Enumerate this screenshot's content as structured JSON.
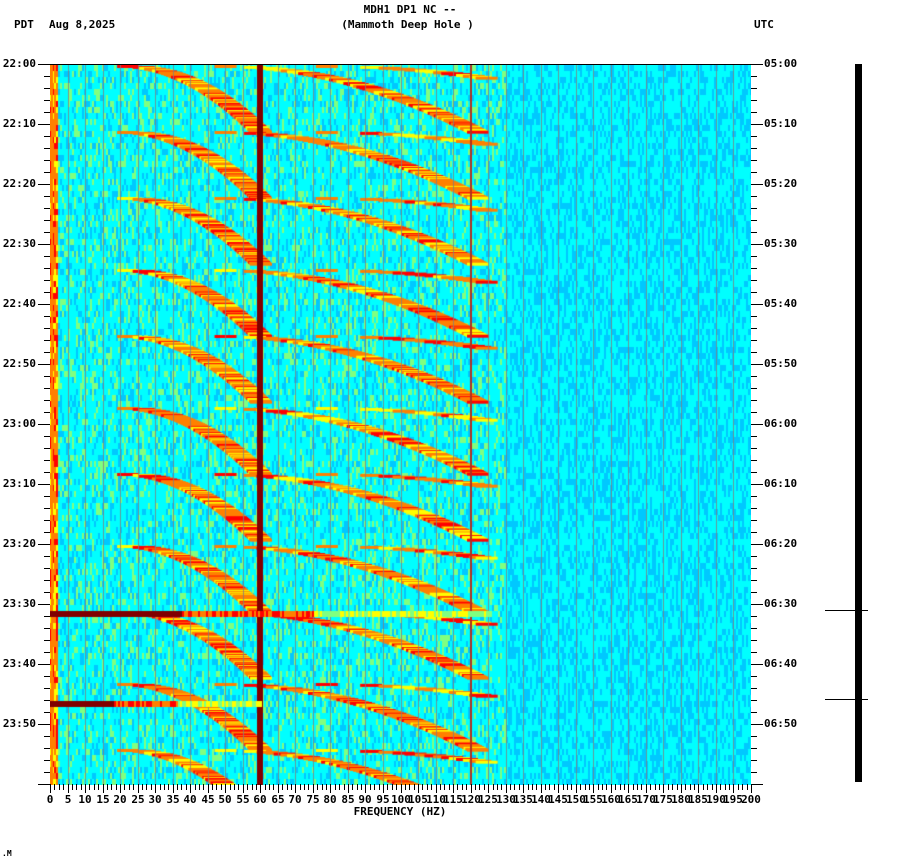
{
  "header": {
    "station": "MDH1 DP1 NC --",
    "location": "(Mammoth Deep Hole )",
    "left_timezone": "PDT",
    "date": "Aug 8,2025",
    "right_timezone": "UTC"
  },
  "footer": {
    "mark": ".M"
  },
  "chart_data": {
    "type": "heatmap",
    "title": "MDH1 DP1 NC -- (Mammoth Deep Hole )",
    "xlabel": "FREQUENCY (HZ)",
    "ylabel_left": "PDT",
    "ylabel_right": "UTC",
    "xlim": [
      0,
      200
    ],
    "x_ticks": [
      0,
      5,
      10,
      15,
      20,
      25,
      30,
      35,
      40,
      45,
      50,
      55,
      60,
      65,
      70,
      75,
      80,
      85,
      90,
      95,
      100,
      105,
      110,
      115,
      120,
      125,
      130,
      135,
      140,
      145,
      150,
      155,
      160,
      165,
      170,
      175,
      180,
      185,
      190,
      195,
      200
    ],
    "y_ticks_left": [
      "22:00",
      "22:10",
      "22:20",
      "22:30",
      "22:40",
      "22:50",
      "23:00",
      "23:10",
      "23:20",
      "23:30",
      "23:40",
      "23:50"
    ],
    "y_ticks_right": [
      "05:00",
      "05:10",
      "05:20",
      "05:30",
      "05:40",
      "05:50",
      "06:00",
      "06:10",
      "06:20",
      "06:30",
      "06:40",
      "06:50"
    ],
    "time_range_minutes": 120,
    "colormap": [
      "#0000ff",
      "#0080ff",
      "#00c8ff",
      "#00ffff",
      "#80ff80",
      "#ffff00",
      "#ff8000",
      "#ff0000",
      "#800000"
    ],
    "background_level": "cyan-blue",
    "persistent_lines_hz": [
      {
        "freq": 60,
        "strength": "max",
        "color": "#800000"
      },
      {
        "freq": 120,
        "strength": "moderate",
        "color": "#b03020"
      },
      {
        "freq": 0.5,
        "strength": "high",
        "color": "#ff8000"
      }
    ],
    "broadband_events": [
      {
        "time_pdt": "23:31",
        "freq_range": [
          0,
          125
        ],
        "color": "#800000"
      },
      {
        "time_pdt": "23:46",
        "freq_range": [
          0,
          60
        ],
        "color": "#800000"
      }
    ],
    "gliding_tones": {
      "description": "Repeating upward-curving harmonic glides (aircraft-like), period approx 11 min",
      "start_minutes": [
        0,
        11,
        22,
        34,
        45,
        57,
        68,
        80,
        91,
        103,
        114
      ],
      "fundamental_range_hz": [
        22,
        60
      ],
      "harmonic_count": 3
    },
    "seismogram": {
      "markers_pdt": [
        "23:31",
        "23:46"
      ]
    }
  }
}
